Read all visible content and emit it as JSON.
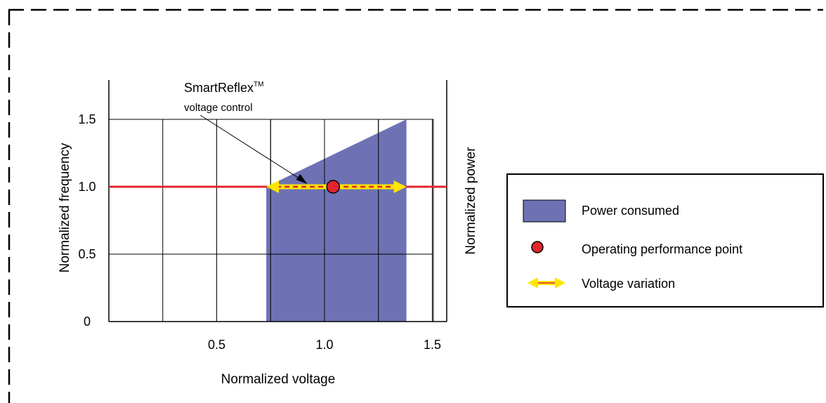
{
  "chart_data": {
    "type": "area",
    "xlabel": "Normalized voltage",
    "ylabel": "Normalized frequency",
    "y2label": "Normalized power",
    "x_ticks": [
      {
        "value": 0.5,
        "label": "0.5"
      },
      {
        "value": 1.0,
        "label": "1.0"
      },
      {
        "value": 1.5,
        "label": "1.5"
      }
    ],
    "y_ticks": [
      {
        "value": 0,
        "label": "0"
      },
      {
        "value": 0.5,
        "label": "0.5"
      },
      {
        "value": 1.0,
        "label": "1.0"
      },
      {
        "value": 1.5,
        "label": "1.5"
      }
    ],
    "xlim": [
      0,
      1.58
    ],
    "ylim": [
      0,
      1.8
    ],
    "grid": true,
    "x_grid": [
      0.25,
      0.5,
      0.75,
      1.0,
      1.25,
      1.5
    ],
    "power_region": {
      "x_start": 0.73,
      "x_end": 1.38,
      "top": [
        [
          0.73,
          1.0
        ],
        [
          1.38,
          1.5
        ]
      ],
      "color": "#6e72b4"
    },
    "frequency_line": {
      "y": 1.0,
      "color": "#e3242b"
    },
    "operating_point": {
      "x": 1.04,
      "y": 1.0,
      "color": "#e3242b"
    },
    "voltage_variation": {
      "x_min": 0.73,
      "x_max": 1.38,
      "y": 1.0,
      "color": "#ffe600"
    },
    "annotation": {
      "title": "SmartReflex",
      "title_sup": "TM",
      "subtitle": "voltage control",
      "target": {
        "x": 0.92,
        "y": 1.0
      }
    },
    "legend": {
      "position": "right",
      "items": [
        {
          "label": "Power consumed",
          "marker": "rect",
          "color": "#6e72b4"
        },
        {
          "label": "Operating performance point",
          "marker": "circle",
          "color": "#e3242b"
        },
        {
          "label": "Voltage variation",
          "marker": "arrow",
          "color": "#ffe600"
        }
      ]
    }
  }
}
